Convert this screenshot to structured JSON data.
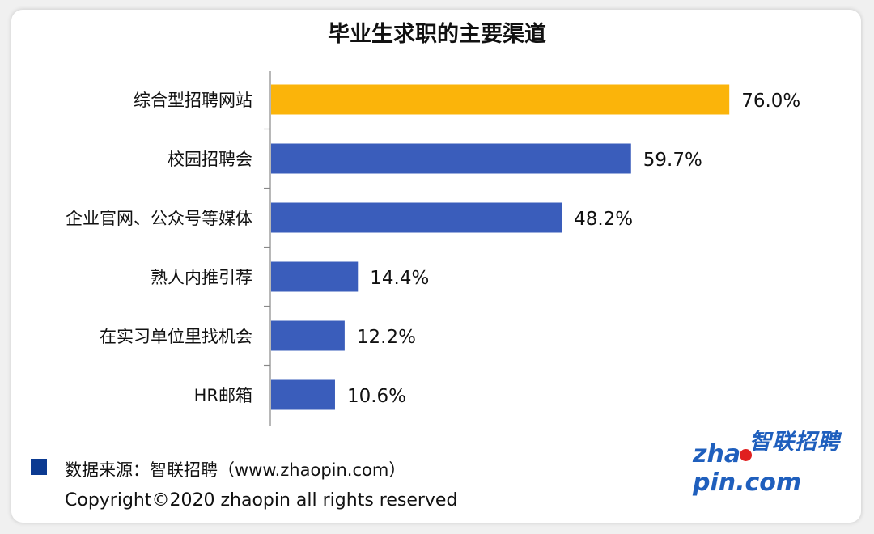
{
  "chart_data": {
    "type": "bar",
    "orientation": "horizontal",
    "title": "毕业生求职的主要渠道",
    "categories": [
      "综合型招聘网站",
      "校园招聘会",
      "企业官网、公众号等媒体",
      "熟人内推引荐",
      "在实习单位里找机会",
      "HR邮箱"
    ],
    "values": [
      76.0,
      59.7,
      48.2,
      14.4,
      12.2,
      10.6
    ],
    "value_labels": [
      "76.0%",
      "59.7%",
      "48.2%",
      "14.4%",
      "12.2%",
      "10.6%"
    ],
    "highlight_index": 0,
    "colors": {
      "highlight": "#fbb40a",
      "default": "#3a5dbb"
    },
    "xlim": [
      0,
      100
    ],
    "grid": false,
    "legend": "none"
  },
  "footer": {
    "source": "数据来源：智联招聘（www.zhaopin.com）",
    "copyright": "Copyright©2020 zhaopin all rights reserved",
    "source_marker_color": "#0b3a91"
  },
  "logo": {
    "cn": "智联招聘",
    "en_before": "zha",
    "en_after": "pin.com",
    "color": "#1f5fbd",
    "dot_color": "#e02020"
  }
}
